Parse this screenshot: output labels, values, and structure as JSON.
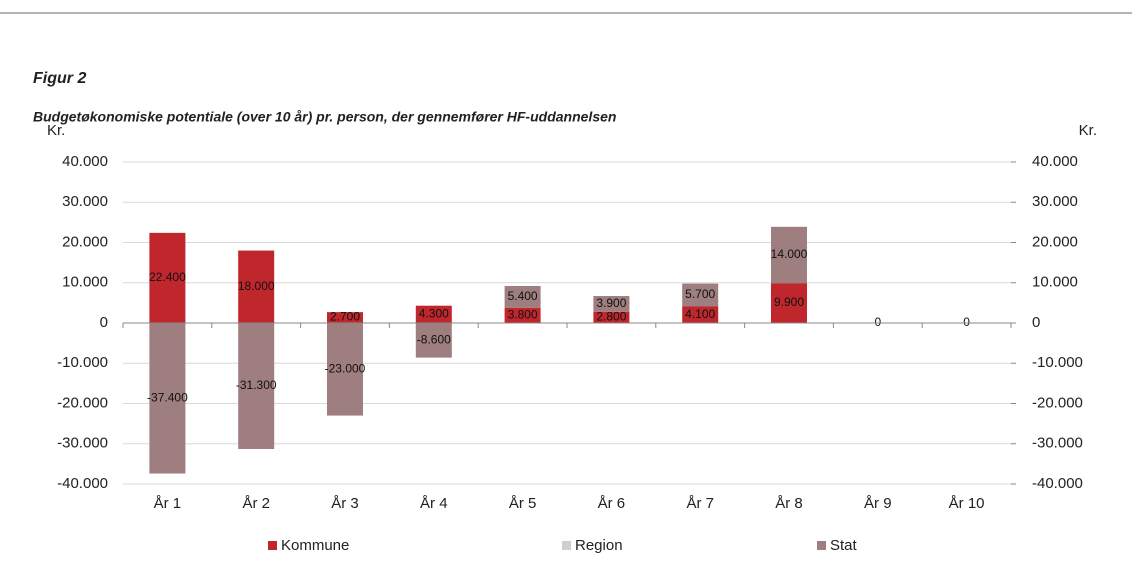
{
  "chart_data": {
    "type": "stacked_bar",
    "title": "Figur 2",
    "subtitle": "Budgetøkonomiske potentiale (over 10 år) pr. person, der gennemfører HF-uddannelsen",
    "y_label": "Kr.",
    "y2_label": "Kr.",
    "categories": [
      "År 1",
      "År 2",
      "År 3",
      "År 4",
      "År 5",
      "År 6",
      "År 7",
      "År 8",
      "År 9",
      "År 10"
    ],
    "series": [
      {
        "name": "Kommune",
        "color": "#c0272d",
        "values": [
          22400,
          18000,
          2700,
          4300,
          3800,
          2800,
          4100,
          9900,
          0,
          0
        ],
        "value_labels": [
          "22.400",
          "18.000",
          "2.700",
          "4.300",
          "3.800",
          "2.800",
          "4.100",
          "9.900",
          "0",
          "0"
        ]
      },
      {
        "name": "Region",
        "color": "#cfcfcf",
        "values": [
          0,
          0,
          0,
          0,
          0,
          0,
          0,
          0,
          0,
          0
        ]
      },
      {
        "name": "Stat",
        "color": "#9e7e7e",
        "values": [
          -37400,
          -31300,
          -23000,
          -8600,
          5400,
          3900,
          5700,
          14000,
          0,
          0
        ],
        "value_labels": [
          "-37.400",
          "-31.300",
          "-23.000",
          "-8.600",
          "5.400",
          "3.900",
          "5.700",
          "14.000",
          null,
          null
        ]
      }
    ],
    "ylim": [
      -40000,
      40000
    ],
    "yticks": [
      {
        "value": -40000,
        "label": "-40.000"
      },
      {
        "value": -30000,
        "label": "-30.000"
      },
      {
        "value": -20000,
        "label": "-20.000"
      },
      {
        "value": -10000,
        "label": "-10.000"
      },
      0,
      {
        "value": 10000,
        "label": "10.000"
      },
      {
        "value": 20000,
        "label": "20.000"
      },
      {
        "value": 30000,
        "label": "30.000"
      },
      {
        "value": 40000,
        "label": "40.000"
      }
    ],
    "y2lim": [
      -40000,
      40000
    ],
    "y2ticks": [
      {
        "value": -40000,
        "label": "-40.000"
      },
      {
        "value": -30000,
        "label": "-30.000"
      },
      {
        "value": -20000,
        "label": "-20.000"
      },
      {
        "value": -10000,
        "label": "-10.000"
      },
      0,
      {
        "value": 10000,
        "label": "10.000"
      },
      {
        "value": 20000,
        "label": "20.000"
      },
      {
        "value": 30000,
        "label": "30.000"
      },
      {
        "value": 40000,
        "label": "40.000"
      }
    ],
    "grid": true,
    "legend": "bottom"
  }
}
